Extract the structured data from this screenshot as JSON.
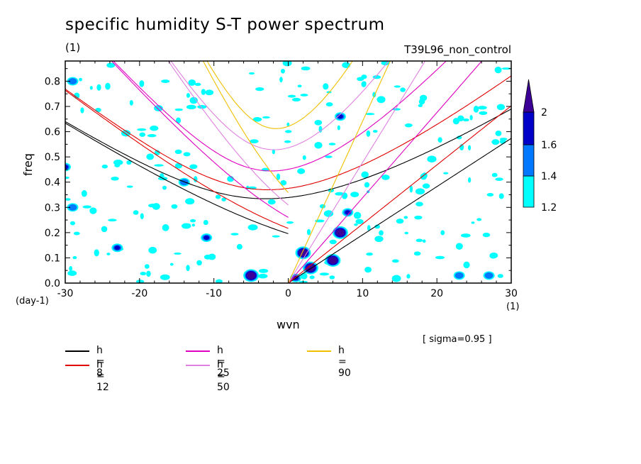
{
  "header": {
    "title": "specific humidity S-T power spectrum",
    "unit_left": "(1)",
    "experiment": "T39L96_non_control"
  },
  "axes": {
    "xlabel": "wvn",
    "ylabel": "freq",
    "x_unit_left": "(day-1)",
    "x_unit_right": "(1)"
  },
  "annotation": {
    "sigma": "[ sigma=0.95 ]"
  },
  "colorbar": {
    "levels": [
      "1.2",
      "1.4",
      "1.6",
      "2"
    ],
    "colors": [
      "#00ffff",
      "#0078ff",
      "#0000c8",
      "#3c0096"
    ]
  },
  "legend": [
    {
      "label": "h =  8",
      "color": "#000000"
    },
    {
      "label": "h = 12",
      "color": "#e00000"
    },
    {
      "label": "h = 25",
      "color": "#e000c0"
    },
    {
      "label": "h = 50",
      "color": "#e080e0"
    },
    {
      "label": "h = 90",
      "color": "#f0c000"
    }
  ],
  "chart_data": {
    "type": "contour",
    "xlim": [
      -30,
      30
    ],
    "ylim": [
      0,
      0.88
    ],
    "x_ticks": [
      "-30",
      "-20",
      "-10",
      "0",
      "10",
      "20",
      "30"
    ],
    "x_tick_values": [
      -30,
      -20,
      -10,
      0,
      10,
      20,
      30
    ],
    "y_ticks": [
      "0.0",
      "0.1",
      "0.2",
      "0.3",
      "0.4",
      "0.5",
      "0.6",
      "0.7",
      "0.8"
    ],
    "y_tick_values": [
      0,
      0.1,
      0.2,
      0.3,
      0.4,
      0.5,
      0.6,
      0.7,
      0.8
    ],
    "contour_levels": [
      1.2,
      1.4,
      1.6,
      2
    ],
    "dispersion_curves": [
      {
        "name": "h =  8",
        "equivalent_depth": 8,
        "color": "#000000"
      },
      {
        "name": "h = 12",
        "equivalent_depth": 12,
        "color": "#e00000"
      },
      {
        "name": "h = 25",
        "equivalent_depth": 25,
        "color": "#e000c0"
      },
      {
        "name": "h = 50",
        "equivalent_depth": 50,
        "color": "#e080e0"
      },
      {
        "name": "h = 90",
        "equivalent_depth": 90,
        "color": "#f0c000"
      }
    ],
    "significant_blobs": [
      {
        "x": -5,
        "y": 0.03,
        "level": 2
      },
      {
        "x": 2,
        "y": 0.12,
        "level": 2
      },
      {
        "x": 3,
        "y": 0.06,
        "level": 2
      },
      {
        "x": 6,
        "y": 0.09,
        "level": 2
      },
      {
        "x": 7,
        "y": 0.2,
        "level": 2
      },
      {
        "x": 8,
        "y": 0.28,
        "level": 1.6
      },
      {
        "x": -11,
        "y": 0.18,
        "level": 1.6
      },
      {
        "x": -23,
        "y": 0.14,
        "level": 1.6
      },
      {
        "x": 7,
        "y": 0.66,
        "level": 1.6
      },
      {
        "x": 1,
        "y": 0.02,
        "level": 1.6
      },
      {
        "x": 23,
        "y": 0.03,
        "level": 1.4
      },
      {
        "x": 27,
        "y": 0.03,
        "level": 1.4
      },
      {
        "x": -30,
        "y": 0.46,
        "level": 1.6
      },
      {
        "x": -29,
        "y": 0.3,
        "level": 1.4
      },
      {
        "x": -14,
        "y": 0.4,
        "level": 1.4
      },
      {
        "x": -29,
        "y": 0.8,
        "level": 1.4
      }
    ]
  }
}
